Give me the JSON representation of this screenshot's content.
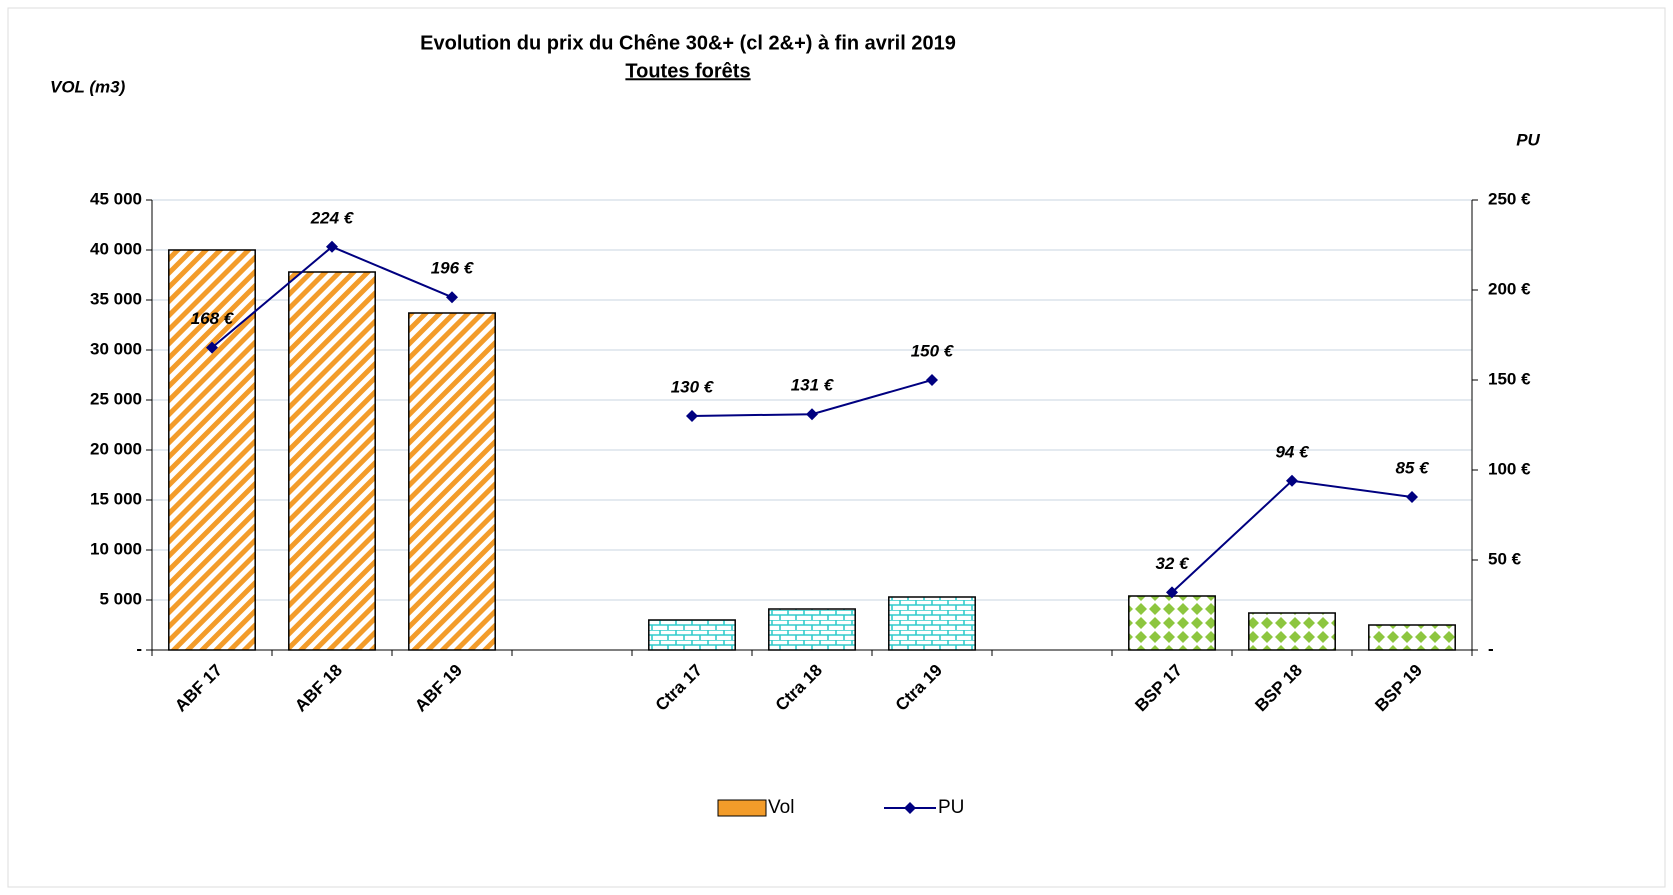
{
  "chart_data": {
    "type": "bar_line",
    "title": "Evolution du prix du Chêne 30&+ (cl 2&+) à fin avril 2019",
    "subtitle": "Toutes forêts",
    "y_label": "VOL (m3)",
    "y2_label": "PU",
    "categories": [
      "ABF 17",
      "ABF 18",
      "ABF 19",
      null,
      "Ctra 17",
      "Ctra 18",
      "Ctra 19",
      null,
      "BSP 17",
      "BSP 18",
      "BSP 19"
    ],
    "series": [
      {
        "name": "Vol",
        "type": "bar",
        "color": "#f39c2a",
        "bar_colors": [
          "#f39c2a",
          "#f39c2a",
          "#f39c2a",
          null,
          "#33cccc",
          "#33cccc",
          "#33cccc",
          null,
          "#8dc63f",
          "#8dc63f",
          "#8dc63f"
        ],
        "bar_patterns": [
          "stripes",
          "stripes",
          "stripes",
          null,
          "bricks",
          "bricks",
          "bricks",
          null,
          "diamonds",
          "diamonds",
          "diamonds"
        ],
        "values": [
          40000,
          37800,
          33700,
          null,
          3000,
          4100,
          5300,
          null,
          5400,
          3700,
          2500
        ]
      },
      {
        "name": "PU",
        "type": "line",
        "axis": "y2",
        "color": "#000080",
        "values": [
          168,
          224,
          196,
          null,
          130,
          131,
          150,
          null,
          32,
          94,
          85
        ],
        "value_labels": [
          "168 €",
          "224 €",
          "196 €",
          null,
          "130 €",
          "131 €",
          "150 €",
          null,
          "32 €",
          "94 €",
          "85 €"
        ]
      }
    ],
    "ylim": [
      0,
      45000
    ],
    "yticks": [
      {
        "value": 0,
        "label": "-"
      },
      {
        "value": 5000,
        "label": "5 000"
      },
      {
        "value": 10000,
        "label": "10 000"
      },
      {
        "value": 15000,
        "label": "15 000"
      },
      {
        "value": 20000,
        "label": "20 000"
      },
      {
        "value": 25000,
        "label": "25 000"
      },
      {
        "value": 30000,
        "label": "30 000"
      },
      {
        "value": 35000,
        "label": "35 000"
      },
      {
        "value": 40000,
        "label": "40 000"
      },
      {
        "value": 45000,
        "label": "45 000"
      }
    ],
    "y2lim": [
      0,
      250
    ],
    "y2ticks": [
      {
        "value": 0,
        "label": "-"
      },
      {
        "value": 50,
        "label": "50 €"
      },
      {
        "value": 100,
        "label": "100 €"
      },
      {
        "value": 150,
        "label": "150 €"
      },
      {
        "value": 200,
        "label": "200 €"
      },
      {
        "value": 250,
        "label": "250 €"
      }
    ],
    "grid": true,
    "legend": "bottom"
  }
}
